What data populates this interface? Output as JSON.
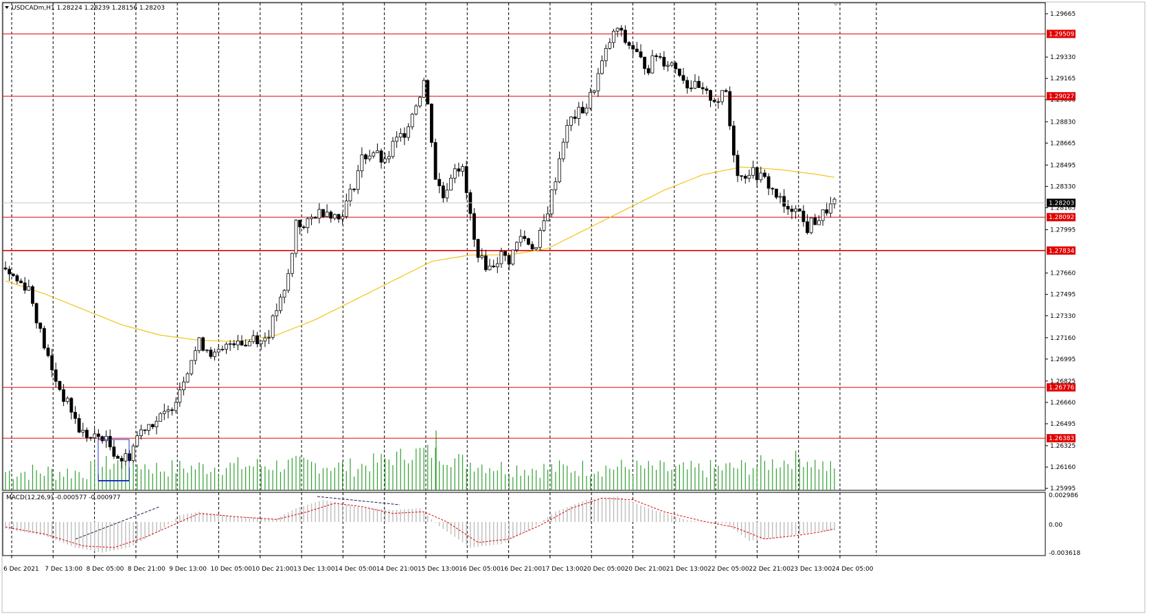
{
  "header": {
    "symbol_line": "USDCADm,H1  1.28224 1.28239 1.28156 1.28203"
  },
  "macd": {
    "label": "MACD(12,26,9) -0.000577 -0.000977",
    "axis_ticks": [
      "0.002986",
      "0.00",
      "-0.003618"
    ]
  },
  "colors": {
    "background": "#ffffff",
    "candle": "#000000",
    "volume": "#2f9e2f",
    "ma": "#f0c419",
    "level_line": "#e00000",
    "level_label_bg": "#e00000",
    "macd_hist": "#c0c0c0",
    "macd_signal": "#e00000",
    "selection_box": "#2030c8"
  },
  "chart_data": {
    "type": "candlestick",
    "symbol": "USDCADm",
    "timeframe": "H1",
    "ohlc_current": {
      "open": 1.28224,
      "high": 1.28239,
      "low": 1.28156,
      "close": 1.28203
    },
    "current_price_label": "1.28203",
    "y_ticks": [
      "1.29665",
      "1.29330",
      "1.29165",
      "1.29000",
      "1.28830",
      "1.28665",
      "1.28495",
      "1.28330",
      "1.28165",
      "1.27995",
      "1.27660",
      "1.27495",
      "1.27330",
      "1.27160",
      "1.26995",
      "1.26825",
      "1.26660",
      "1.26495",
      "1.26325",
      "1.26160",
      "1.25995"
    ],
    "ylim": [
      1.2598,
      1.2975
    ],
    "x_ticks": [
      "6 Dec 2021",
      "7 Dec 13:00",
      "8 Dec 05:00",
      "8 Dec 21:00",
      "9 Dec 13:00",
      "10 Dec 05:00",
      "10 Dec 21:00",
      "13 Dec 13:00",
      "14 Dec 05:00",
      "14 Dec 21:00",
      "15 Dec 13:00",
      "16 Dec 05:00",
      "16 Dec 21:00",
      "17 Dec 13:00",
      "20 Dec 05:00",
      "20 Dec 21:00",
      "21 Dec 13:00",
      "22 Dec 05:00",
      "22 Dec 21:00",
      "23 Dec 13:00",
      "24 Dec 05:00"
    ],
    "horizontal_levels": [
      {
        "value": 1.29509,
        "label": "1.29509"
      },
      {
        "value": 1.29027,
        "label": "1.29027"
      },
      {
        "value": 1.28092,
        "label": "1.28092"
      },
      {
        "value": 1.27834,
        "label": "1.27834"
      },
      {
        "value": 1.26776,
        "label": "1.26776"
      },
      {
        "value": 1.26383,
        "label": "1.26383"
      }
    ],
    "price_path": [
      [
        0,
        1.277
      ],
      [
        3,
        1.276
      ],
      [
        6,
        1.2755
      ],
      [
        9,
        1.272
      ],
      [
        12,
        1.269
      ],
      [
        15,
        1.267
      ],
      [
        17,
        1.266
      ],
      [
        19,
        1.2645
      ],
      [
        22,
        1.2638
      ],
      [
        25,
        1.264
      ],
      [
        28,
        1.2628
      ],
      [
        30,
        1.2622
      ],
      [
        32,
        1.2625
      ],
      [
        34,
        1.264
      ],
      [
        36,
        1.2648
      ],
      [
        39,
        1.2652
      ],
      [
        42,
        1.2658
      ],
      [
        44,
        1.267
      ],
      [
        46,
        1.2685
      ],
      [
        48,
        1.27
      ],
      [
        50,
        1.2712
      ],
      [
        52,
        1.2708
      ],
      [
        54,
        1.2702
      ],
      [
        56,
        1.2705
      ],
      [
        58,
        1.2712
      ],
      [
        60,
        1.2716
      ],
      [
        62,
        1.271
      ],
      [
        64,
        1.2718
      ],
      [
        66,
        1.2713
      ],
      [
        68,
        1.272
      ],
      [
        70,
        1.2738
      ],
      [
        72,
        1.275
      ],
      [
        74,
        1.278
      ],
      [
        75,
        1.2808
      ],
      [
        77,
        1.28
      ],
      [
        80,
        1.2812
      ],
      [
        83,
        1.2815
      ],
      [
        86,
        1.2808
      ],
      [
        88,
        1.282
      ],
      [
        90,
        1.2835
      ],
      [
        92,
        1.2855
      ],
      [
        95,
        1.286
      ],
      [
        98,
        1.285
      ],
      [
        100,
        1.2865
      ],
      [
        103,
        1.2875
      ],
      [
        105,
        1.289
      ],
      [
        107,
        1.2905
      ],
      [
        108,
        1.2915
      ],
      [
        109,
        1.2895
      ],
      [
        110,
        1.287
      ],
      [
        111,
        1.284
      ],
      [
        113,
        1.2825
      ],
      [
        116,
        1.285
      ],
      [
        118,
        1.2845
      ],
      [
        120,
        1.281
      ],
      [
        121,
        1.279
      ],
      [
        123,
        1.2775
      ],
      [
        125,
        1.277
      ],
      [
        128,
        1.278
      ],
      [
        130,
        1.2776
      ],
      [
        133,
        1.2795
      ],
      [
        135,
        1.279
      ],
      [
        137,
        1.2785
      ],
      [
        140,
        1.2815
      ],
      [
        142,
        1.284
      ],
      [
        144,
        1.287
      ],
      [
        146,
        1.2885
      ],
      [
        148,
        1.289
      ],
      [
        150,
        1.2895
      ],
      [
        152,
        1.291
      ],
      [
        154,
        1.2928
      ],
      [
        156,
        1.2945
      ],
      [
        158,
        1.2955
      ],
      [
        160,
        1.2945
      ],
      [
        162,
        1.294
      ],
      [
        164,
        1.293
      ],
      [
        166,
        1.2925
      ],
      [
        168,
        1.2935
      ],
      [
        170,
        1.293
      ],
      [
        172,
        1.2928
      ],
      [
        174,
        1.2922
      ],
      [
        176,
        1.2912
      ],
      [
        178,
        1.291
      ],
      [
        180,
        1.2905
      ],
      [
        182,
        1.2902
      ],
      [
        184,
        1.29
      ],
      [
        186,
        1.2906
      ],
      [
        187,
        1.288
      ],
      [
        188,
        1.286
      ],
      [
        189,
        1.2845
      ],
      [
        190,
        1.284
      ],
      [
        192,
        1.2845
      ],
      [
        194,
        1.2842
      ],
      [
        196,
        1.2838
      ],
      [
        198,
        1.283
      ],
      [
        200,
        1.2822
      ],
      [
        202,
        1.2812
      ],
      [
        204,
        1.282
      ],
      [
        206,
        1.2805
      ],
      [
        207,
        1.28
      ],
      [
        208,
        1.2805
      ],
      [
        210,
        1.2808
      ],
      [
        212,
        1.2815
      ],
      [
        214,
        1.282
      ]
    ],
    "ma_path": [
      [
        0,
        1.276
      ],
      [
        10,
        1.275
      ],
      [
        20,
        1.2738
      ],
      [
        30,
        1.2726
      ],
      [
        40,
        1.2718
      ],
      [
        50,
        1.2714
      ],
      [
        60,
        1.2713
      ],
      [
        70,
        1.2718
      ],
      [
        80,
        1.273
      ],
      [
        90,
        1.2745
      ],
      [
        100,
        1.276
      ],
      [
        110,
        1.2775
      ],
      [
        120,
        1.278
      ],
      [
        130,
        1.278
      ],
      [
        140,
        1.2785
      ],
      [
        150,
        1.28
      ],
      [
        160,
        1.2815
      ],
      [
        170,
        1.283
      ],
      [
        180,
        1.2842
      ],
      [
        190,
        1.2848
      ],
      [
        200,
        1.2846
      ],
      [
        210,
        1.2842
      ],
      [
        214,
        1.284
      ]
    ],
    "macd_hist": [
      [
        0,
        -0.0008
      ],
      [
        10,
        -0.0016
      ],
      [
        18,
        -0.003
      ],
      [
        25,
        -0.0036
      ],
      [
        32,
        -0.003
      ],
      [
        40,
        -0.001
      ],
      [
        45,
        0.0008
      ],
      [
        50,
        0.0012
      ],
      [
        60,
        0.0006
      ],
      [
        70,
        0.0004
      ],
      [
        75,
        0.0016
      ],
      [
        82,
        0.0026
      ],
      [
        90,
        0.0018
      ],
      [
        100,
        0.0014
      ],
      [
        107,
        0.0016
      ],
      [
        112,
        -0.0005
      ],
      [
        120,
        -0.003
      ],
      [
        128,
        -0.0026
      ],
      [
        135,
        -0.001
      ],
      [
        142,
        0.0012
      ],
      [
        150,
        0.0026
      ],
      [
        158,
        0.003
      ],
      [
        166,
        0.0016
      ],
      [
        176,
        0.0002
      ],
      [
        186,
        -0.0002
      ],
      [
        192,
        -0.0022
      ],
      [
        200,
        -0.0018
      ],
      [
        208,
        -0.0012
      ],
      [
        214,
        -0.001
      ]
    ],
    "macd_signal": [
      [
        0,
        -0.0006
      ],
      [
        10,
        -0.0014
      ],
      [
        20,
        -0.0028
      ],
      [
        28,
        -0.003
      ],
      [
        36,
        -0.0018
      ],
      [
        44,
        -0.0002
      ],
      [
        50,
        0.001
      ],
      [
        60,
        0.0006
      ],
      [
        70,
        0.0003
      ],
      [
        78,
        0.0012
      ],
      [
        85,
        0.0022
      ],
      [
        92,
        0.0018
      ],
      [
        100,
        0.001
      ],
      [
        108,
        0.0012
      ],
      [
        114,
        0.0
      ],
      [
        122,
        -0.0024
      ],
      [
        130,
        -0.002
      ],
      [
        138,
        -0.0004
      ],
      [
        146,
        0.0016
      ],
      [
        154,
        0.0028
      ],
      [
        162,
        0.0026
      ],
      [
        170,
        0.0012
      ],
      [
        180,
        0.0001
      ],
      [
        188,
        -0.0006
      ],
      [
        196,
        -0.002
      ],
      [
        204,
        -0.0016
      ],
      [
        210,
        -0.0012
      ],
      [
        214,
        -0.0008
      ]
    ],
    "volume_path": [
      [
        0,
        0.3
      ],
      [
        20,
        0.3
      ],
      [
        30,
        0.7
      ],
      [
        40,
        0.4
      ],
      [
        60,
        0.5
      ],
      [
        80,
        0.55
      ],
      [
        90,
        0.45
      ],
      [
        108,
        1.0
      ],
      [
        118,
        0.65
      ],
      [
        128,
        0.45
      ],
      [
        140,
        0.4
      ],
      [
        158,
        0.45
      ],
      [
        176,
        0.35
      ],
      [
        190,
        0.45
      ],
      [
        206,
        0.75
      ],
      [
        214,
        0.35
      ]
    ]
  }
}
